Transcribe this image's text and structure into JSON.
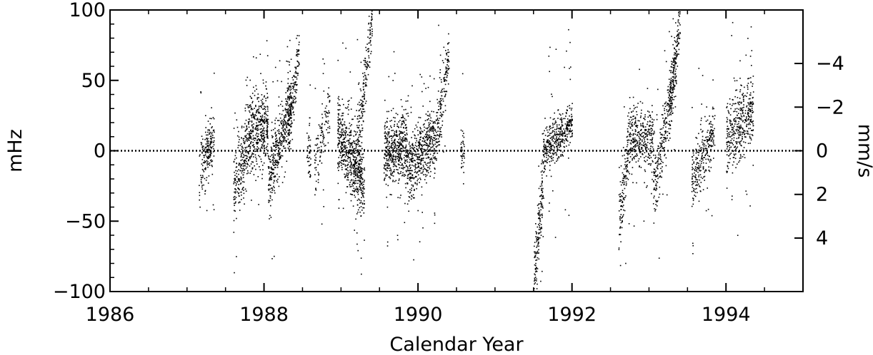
{
  "chart_data": {
    "type": "scatter",
    "title": "",
    "xlabel": "Calendar Year",
    "ylabel": "mHz",
    "y2label": "mm/s",
    "xlim": [
      1986,
      1995
    ],
    "ylim": [
      -100,
      100
    ],
    "x_ticks": [
      1986,
      1988,
      1990,
      1992,
      1994
    ],
    "y_ticks": [
      -100,
      -50,
      0,
      50,
      100
    ],
    "y2_ticks": [
      {
        "label": "-4",
        "at_mHz": 62
      },
      {
        "label": "-2",
        "at_mHz": 31
      },
      {
        "label": "0",
        "at_mHz": 0
      },
      {
        "label": "2",
        "at_mHz": -31
      },
      {
        "label": "4",
        "at_mHz": -62
      }
    ],
    "zero_line": true,
    "grid": false,
    "legend": "none",
    "point_color": "#000000",
    "series": [
      {
        "segments": [
          {
            "start": 1987.15,
            "end": 1987.35,
            "center": [
              -5,
              -20
            ],
            "spread": 16,
            "trend": [
              -12,
              10
            ],
            "density": 170
          },
          {
            "start": 1987.25,
            "end": 1987.3,
            "center": [
              -30,
              60
            ],
            "spread": 10,
            "trend": [
              0,
              0
            ],
            "density": 30
          },
          {
            "start": 1987.6,
            "end": 1987.78,
            "center": [
              -25,
              -5
            ],
            "spread": 22,
            "trend": [
              -30,
              5
            ],
            "density": 220
          },
          {
            "start": 1987.78,
            "end": 1988.05,
            "center": [
              5,
              0
            ],
            "spread": 22,
            "trend": [
              10,
              20
            ],
            "density": 420
          },
          {
            "start": 1988.05,
            "end": 1988.35,
            "center": [
              -10,
              10
            ],
            "spread": 20,
            "trend": [
              -20,
              35
            ],
            "density": 420
          },
          {
            "start": 1988.3,
            "end": 1988.45,
            "center": [
              20,
              60
            ],
            "spread": 14,
            "trend": [
              10,
              70
            ],
            "density": 160
          },
          {
            "start": 1988.55,
            "end": 1988.6,
            "center": [
              -50,
              -20
            ],
            "spread": 20,
            "trend": [
              0,
              0
            ],
            "density": 40
          },
          {
            "start": 1988.65,
            "end": 1988.85,
            "center": [
              -10,
              20
            ],
            "spread": 18,
            "trend": [
              -10,
              30
            ],
            "density": 120
          },
          {
            "start": 1988.95,
            "end": 1989.3,
            "center": [
              -5,
              -10
            ],
            "spread": 22,
            "trend": [
              15,
              -25
            ],
            "density": 560
          },
          {
            "start": 1989.15,
            "end": 1989.4,
            "center": [
              -10,
              60
            ],
            "spread": 16,
            "trend": [
              -20,
              95
            ],
            "density": 240
          },
          {
            "start": 1989.55,
            "end": 1989.85,
            "center": [
              -5,
              -10
            ],
            "spread": 20,
            "trend": [
              0,
              5
            ],
            "density": 480
          },
          {
            "start": 1989.85,
            "end": 1990.2,
            "center": [
              -10,
              5
            ],
            "spread": 20,
            "trend": [
              -15,
              10
            ],
            "density": 480
          },
          {
            "start": 1990.2,
            "end": 1990.4,
            "center": [
              5,
              40
            ],
            "spread": 18,
            "trend": [
              0,
              70
            ],
            "density": 200
          },
          {
            "start": 1990.55,
            "end": 1990.6,
            "center": [
              -10,
              10
            ],
            "spread": 14,
            "trend": [
              0,
              0
            ],
            "density": 40
          },
          {
            "start": 1991.5,
            "end": 1991.62,
            "center": [
              -70,
              -30
            ],
            "spread": 20,
            "trend": [
              -90,
              -20
            ],
            "density": 160
          },
          {
            "start": 1991.62,
            "end": 1992.0,
            "center": [
              -5,
              5
            ],
            "spread": 12,
            "trend": [
              0,
              20
            ],
            "density": 420
          },
          {
            "start": 1992.6,
            "end": 1992.75,
            "center": [
              -40,
              0
            ],
            "spread": 20,
            "trend": [
              -50,
              10
            ],
            "density": 160
          },
          {
            "start": 1992.75,
            "end": 1993.05,
            "center": [
              5,
              5
            ],
            "spread": 18,
            "trend": [
              10,
              10
            ],
            "density": 320
          },
          {
            "start": 1993.05,
            "end": 1993.35,
            "center": [
              -25,
              0
            ],
            "spread": 20,
            "trend": [
              -30,
              60
            ],
            "density": 300
          },
          {
            "start": 1993.25,
            "end": 1993.4,
            "center": [
              30,
              80
            ],
            "spread": 14,
            "trend": [
              30,
              95
            ],
            "density": 150
          },
          {
            "start": 1993.55,
            "end": 1993.85,
            "center": [
              -10,
              0
            ],
            "spread": 18,
            "trend": [
              -20,
              15
            ],
            "density": 280
          },
          {
            "start": 1994.0,
            "end": 1994.35,
            "center": [
              -5,
              -10
            ],
            "spread": 20,
            "trend": [
              10,
              30
            ],
            "density": 420
          }
        ]
      }
    ]
  }
}
